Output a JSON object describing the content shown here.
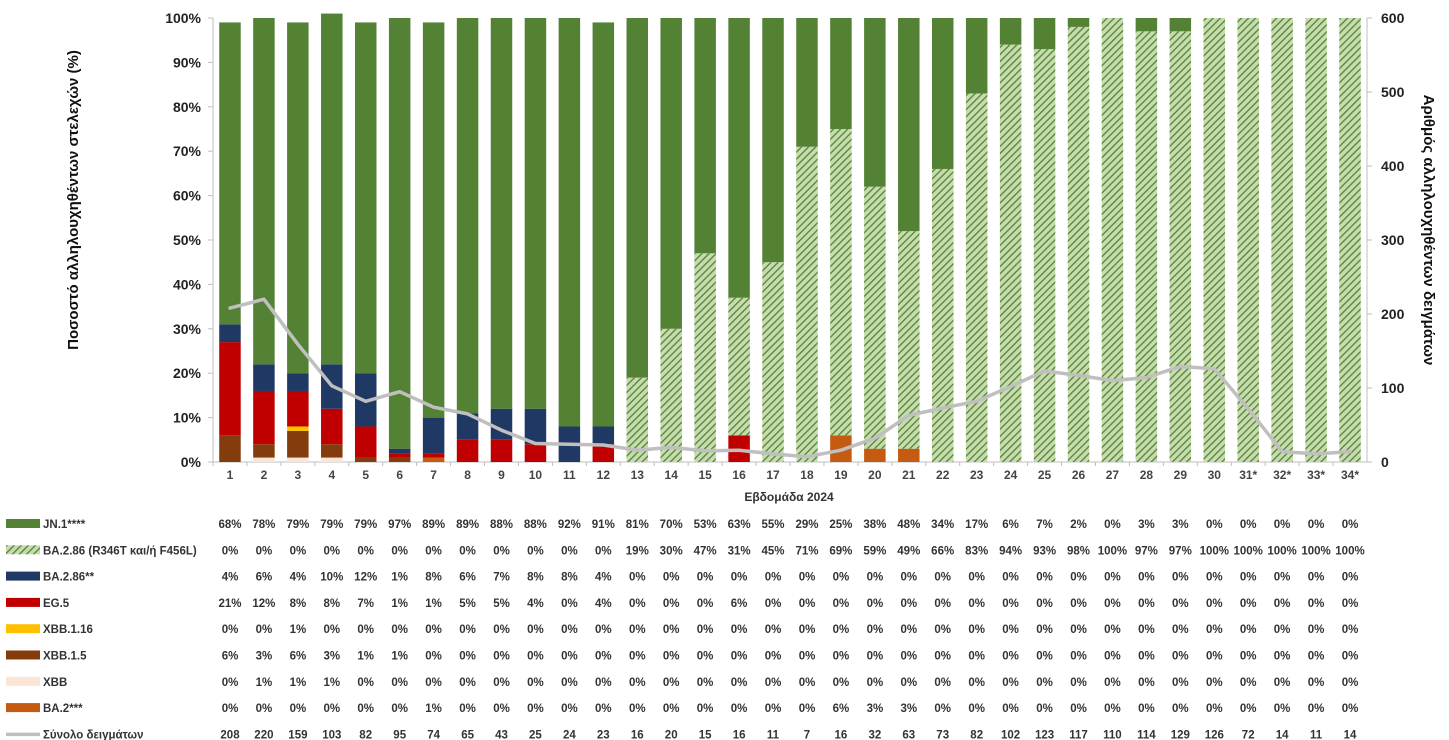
{
  "chart_data": {
    "type": "bar",
    "stacked": true,
    "xlabel": "Εβδομάδα 2024",
    "ylabel_left": "Ποσοστό αλληλουχηθέντων στελεχών (%)",
    "ylabel_right": "Αριθμός αλληλουχηθέντων δειγμάτων",
    "ylim_left": [
      0,
      100
    ],
    "ylim_right": [
      0,
      600
    ],
    "yticks_left": [
      "0%",
      "10%",
      "20%",
      "30%",
      "40%",
      "50%",
      "60%",
      "70%",
      "80%",
      "90%",
      "100%"
    ],
    "yticks_right": [
      "0",
      "100",
      "200",
      "300",
      "400",
      "500",
      "600"
    ],
    "categories": [
      "1",
      "2",
      "3",
      "4",
      "5",
      "6",
      "7",
      "8",
      "9",
      "10",
      "11",
      "12",
      "13",
      "14",
      "15",
      "16",
      "17",
      "18",
      "19",
      "20",
      "21",
      "22",
      "23",
      "24",
      "25",
      "26",
      "27",
      "28",
      "29",
      "30",
      "31*",
      "32*",
      "33*",
      "34*"
    ],
    "series": [
      {
        "name": "JN.1****",
        "color": "#548235",
        "pattern": false,
        "values": [
          68,
          78,
          79,
          79,
          79,
          97,
          89,
          89,
          88,
          88,
          92,
          91,
          81,
          70,
          53,
          63,
          55,
          29,
          25,
          38,
          48,
          34,
          17,
          6,
          7,
          2,
          0,
          3,
          3,
          0,
          0,
          0,
          0,
          0
        ]
      },
      {
        "name": "BA.2.86 (R346T και/ή F456L)",
        "color": "#548235",
        "pattern": true,
        "values": [
          0,
          0,
          0,
          0,
          0,
          0,
          0,
          0,
          0,
          0,
          0,
          0,
          19,
          30,
          47,
          31,
          45,
          71,
          69,
          59,
          49,
          66,
          83,
          94,
          93,
          98,
          100,
          97,
          97,
          100,
          100,
          100,
          100,
          100
        ]
      },
      {
        "name": "BA.2.86**",
        "color": "#203864",
        "pattern": false,
        "values": [
          4,
          6,
          4,
          10,
          12,
          1,
          8,
          6,
          7,
          8,
          8,
          4,
          0,
          0,
          0,
          0,
          0,
          0,
          0,
          0,
          0,
          0,
          0,
          0,
          0,
          0,
          0,
          0,
          0,
          0,
          0,
          0,
          0,
          0
        ]
      },
      {
        "name": "EG.5",
        "color": "#c00000",
        "pattern": false,
        "values": [
          21,
          12,
          8,
          8,
          7,
          1,
          1,
          5,
          5,
          4,
          0,
          4,
          0,
          0,
          0,
          6,
          0,
          0,
          0,
          0,
          0,
          0,
          0,
          0,
          0,
          0,
          0,
          0,
          0,
          0,
          0,
          0,
          0,
          0
        ]
      },
      {
        "name": "XBB.1.16",
        "color": "#ffc000",
        "pattern": false,
        "values": [
          0,
          0,
          1,
          0,
          0,
          0,
          0,
          0,
          0,
          0,
          0,
          0,
          0,
          0,
          0,
          0,
          0,
          0,
          0,
          0,
          0,
          0,
          0,
          0,
          0,
          0,
          0,
          0,
          0,
          0,
          0,
          0,
          0,
          0
        ]
      },
      {
        "name": "XBB.1.5",
        "color": "#843c0c",
        "pattern": false,
        "values": [
          6,
          3,
          6,
          3,
          1,
          1,
          0,
          0,
          0,
          0,
          0,
          0,
          0,
          0,
          0,
          0,
          0,
          0,
          0,
          0,
          0,
          0,
          0,
          0,
          0,
          0,
          0,
          0,
          0,
          0,
          0,
          0,
          0,
          0
        ]
      },
      {
        "name": "XBB",
        "color": "#fbe5d6",
        "pattern": false,
        "values": [
          0,
          1,
          1,
          1,
          0,
          0,
          0,
          0,
          0,
          0,
          0,
          0,
          0,
          0,
          0,
          0,
          0,
          0,
          0,
          0,
          0,
          0,
          0,
          0,
          0,
          0,
          0,
          0,
          0,
          0,
          0,
          0,
          0,
          0
        ]
      },
      {
        "name": "BA.2***",
        "color": "#c55a11",
        "pattern": false,
        "values": [
          0,
          0,
          0,
          0,
          0,
          0,
          1,
          0,
          0,
          0,
          0,
          0,
          0,
          0,
          0,
          0,
          0,
          0,
          6,
          3,
          3,
          0,
          0,
          0,
          0,
          0,
          0,
          0,
          0,
          0,
          0,
          0,
          0,
          0
        ]
      }
    ],
    "line": {
      "name": "Σύνολο δειγμάτων",
      "color": "#bfbfbf",
      "values": [
        208,
        220,
        159,
        103,
        82,
        95,
        74,
        65,
        43,
        25,
        24,
        23,
        16,
        20,
        15,
        16,
        11,
        7,
        16,
        32,
        63,
        73,
        82,
        102,
        123,
        117,
        110,
        114,
        129,
        126,
        72,
        14,
        11,
        14
      ]
    },
    "table": {
      "rows": [
        {
          "label": "JN.1****",
          "cells": [
            "68%",
            "78%",
            "79%",
            "79%",
            "79%",
            "97%",
            "89%",
            "89%",
            "88%",
            "88%",
            "92%",
            "91%",
            "81%",
            "70%",
            "53%",
            "63%",
            "55%",
            "29%",
            "25%",
            "38%",
            "48%",
            "34%",
            "17%",
            "6%",
            "7%",
            "2%",
            "0%",
            "3%",
            "3%",
            "0%",
            "0%",
            "0%",
            "0%",
            "0%"
          ]
        },
        {
          "label": "BA.2.86 (R346T και/ή F456L)",
          "cells": [
            "0%",
            "0%",
            "0%",
            "0%",
            "0%",
            "0%",
            "0%",
            "0%",
            "0%",
            "0%",
            "0%",
            "0%",
            "19%",
            "30%",
            "47%",
            "31%",
            "45%",
            "71%",
            "69%",
            "59%",
            "49%",
            "66%",
            "83%",
            "94%",
            "93%",
            "98%",
            "100%",
            "97%",
            "97%",
            "100%",
            "100%",
            "100%",
            "100%",
            "100%"
          ]
        },
        {
          "label": "BA.2.86**",
          "cells": [
            "4%",
            "6%",
            "4%",
            "10%",
            "12%",
            "1%",
            "8%",
            "6%",
            "7%",
            "8%",
            "8%",
            "4%",
            "0%",
            "0%",
            "0%",
            "0%",
            "0%",
            "0%",
            "0%",
            "0%",
            "0%",
            "0%",
            "0%",
            "0%",
            "0%",
            "0%",
            "0%",
            "0%",
            "0%",
            "0%",
            "0%",
            "0%",
            "0%",
            "0%"
          ]
        },
        {
          "label": "EG.5",
          "cells": [
            "21%",
            "12%",
            "8%",
            "8%",
            "7%",
            "1%",
            "1%",
            "5%",
            "5%",
            "4%",
            "0%",
            "4%",
            "0%",
            "0%",
            "0%",
            "6%",
            "0%",
            "0%",
            "0%",
            "0%",
            "0%",
            "0%",
            "0%",
            "0%",
            "0%",
            "0%",
            "0%",
            "0%",
            "0%",
            "0%",
            "0%",
            "0%",
            "0%",
            "0%"
          ]
        },
        {
          "label": "XBB.1.16",
          "cells": [
            "0%",
            "0%",
            "1%",
            "0%",
            "0%",
            "0%",
            "0%",
            "0%",
            "0%",
            "0%",
            "0%",
            "0%",
            "0%",
            "0%",
            "0%",
            "0%",
            "0%",
            "0%",
            "0%",
            "0%",
            "0%",
            "0%",
            "0%",
            "0%",
            "0%",
            "0%",
            "0%",
            "0%",
            "0%",
            "0%",
            "0%",
            "0%",
            "0%",
            "0%"
          ]
        },
        {
          "label": "XBB.1.5",
          "cells": [
            "6%",
            "3%",
            "6%",
            "3%",
            "1%",
            "1%",
            "0%",
            "0%",
            "0%",
            "0%",
            "0%",
            "0%",
            "0%",
            "0%",
            "0%",
            "0%",
            "0%",
            "0%",
            "0%",
            "0%",
            "0%",
            "0%",
            "0%",
            "0%",
            "0%",
            "0%",
            "0%",
            "0%",
            "0%",
            "0%",
            "0%",
            "0%",
            "0%",
            "0%"
          ]
        },
        {
          "label": "XBB",
          "cells": [
            "0%",
            "1%",
            "1%",
            "1%",
            "0%",
            "0%",
            "0%",
            "0%",
            "0%",
            "0%",
            "0%",
            "0%",
            "0%",
            "0%",
            "0%",
            "0%",
            "0%",
            "0%",
            "0%",
            "0%",
            "0%",
            "0%",
            "0%",
            "0%",
            "0%",
            "0%",
            "0%",
            "0%",
            "0%",
            "0%",
            "0%",
            "0%",
            "0%",
            "0%"
          ]
        },
        {
          "label": "BA.2***",
          "cells": [
            "0%",
            "0%",
            "0%",
            "0%",
            "0%",
            "0%",
            "1%",
            "0%",
            "0%",
            "0%",
            "0%",
            "0%",
            "0%",
            "0%",
            "0%",
            "0%",
            "0%",
            "0%",
            "6%",
            "3%",
            "3%",
            "0%",
            "0%",
            "0%",
            "0%",
            "0%",
            "0%",
            "0%",
            "0%",
            "0%",
            "0%",
            "0%",
            "0%",
            "0%"
          ]
        },
        {
          "label": "Σύνολο δειγμάτων",
          "cells": [
            "208",
            "220",
            "159",
            "103",
            "82",
            "95",
            "74",
            "65",
            "43",
            "25",
            "24",
            "23",
            "16",
            "20",
            "15",
            "16",
            "11",
            "7",
            "16",
            "32",
            "63",
            "73",
            "82",
            "102",
            "123",
            "117",
            "110",
            "114",
            "129",
            "126",
            "72",
            "14",
            "11",
            "14"
          ]
        }
      ]
    },
    "grid": false,
    "legend": "table-below"
  }
}
